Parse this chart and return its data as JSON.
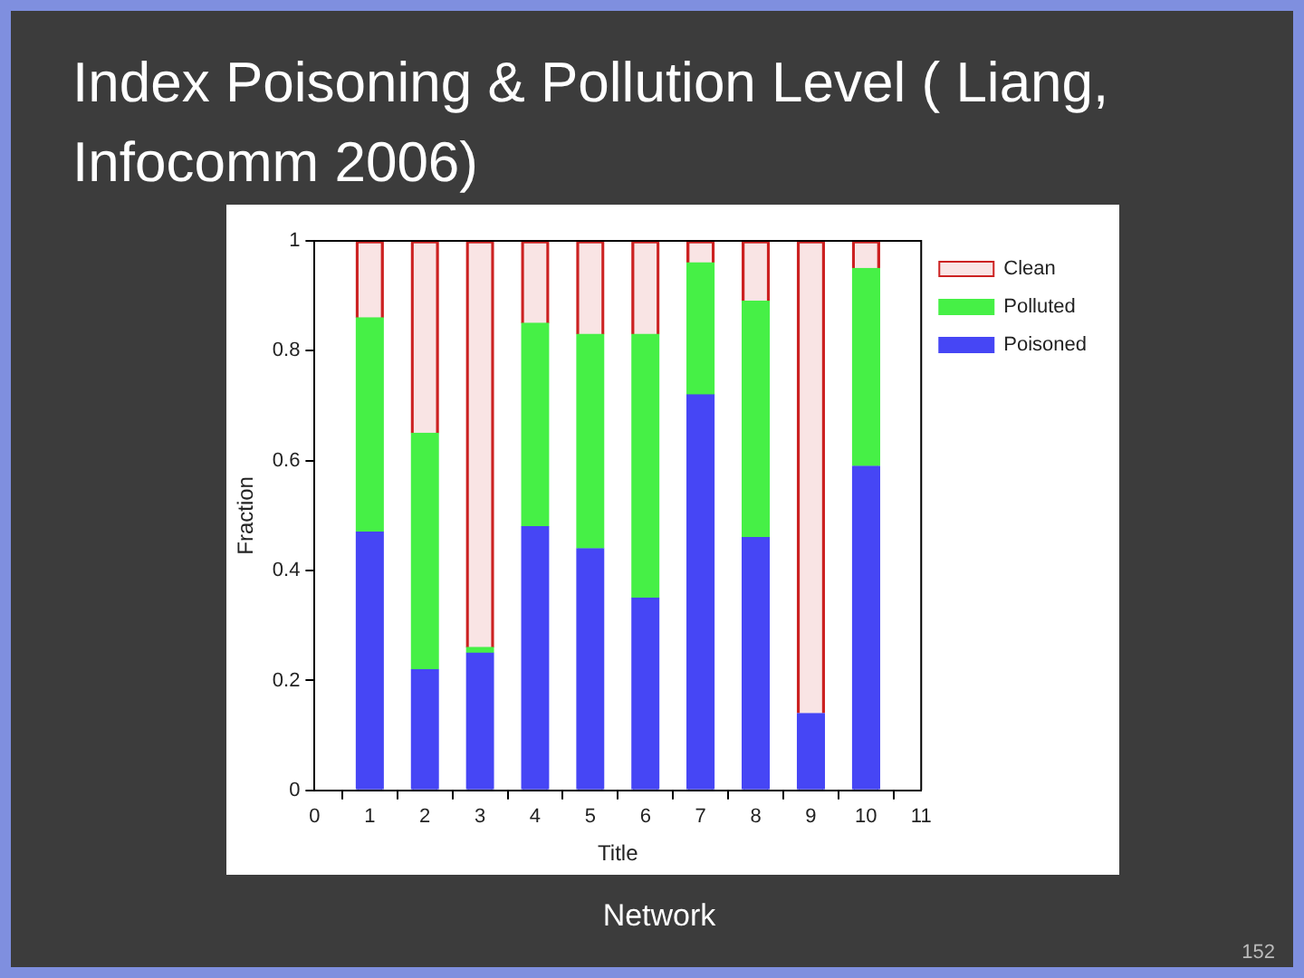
{
  "chart_data": {
    "type": "bar",
    "title": "Index Poisoning & Pollution Level ( Liang, Infocomm 2006)",
    "xlabel": "Title",
    "ylabel": "Fraction",
    "stacked": true,
    "x": [
      1,
      2,
      3,
      4,
      5,
      6,
      7,
      8,
      9,
      10
    ],
    "series": [
      {
        "name": "Poisoned",
        "color": "#4646f5",
        "values": [
          0.47,
          0.22,
          0.25,
          0.48,
          0.44,
          0.35,
          0.72,
          0.46,
          0.14,
          0.59
        ]
      },
      {
        "name": "Polluted",
        "color": "#46f046",
        "values": [
          0.39,
          0.43,
          0.01,
          0.37,
          0.39,
          0.48,
          0.24,
          0.43,
          0,
          0.36
        ]
      },
      {
        "name": "Clean",
        "color": "#cc2222",
        "values": [
          0.14,
          0.35,
          0.74,
          0.15,
          0.17,
          0.17,
          0.04,
          0.11,
          0.86,
          0.05
        ]
      }
    ],
    "xlim": [
      0,
      11
    ],
    "xticks": [
      0,
      1,
      2,
      3,
      4,
      5,
      6,
      7,
      8,
      9,
      10,
      11
    ],
    "ylim": [
      0,
      1
    ],
    "yticks": [
      0,
      0.2,
      0.4,
      0.6,
      0.8,
      1
    ],
    "grid": false,
    "legend": "top right",
    "annotations": [
      "Network",
      "152"
    ]
  }
}
